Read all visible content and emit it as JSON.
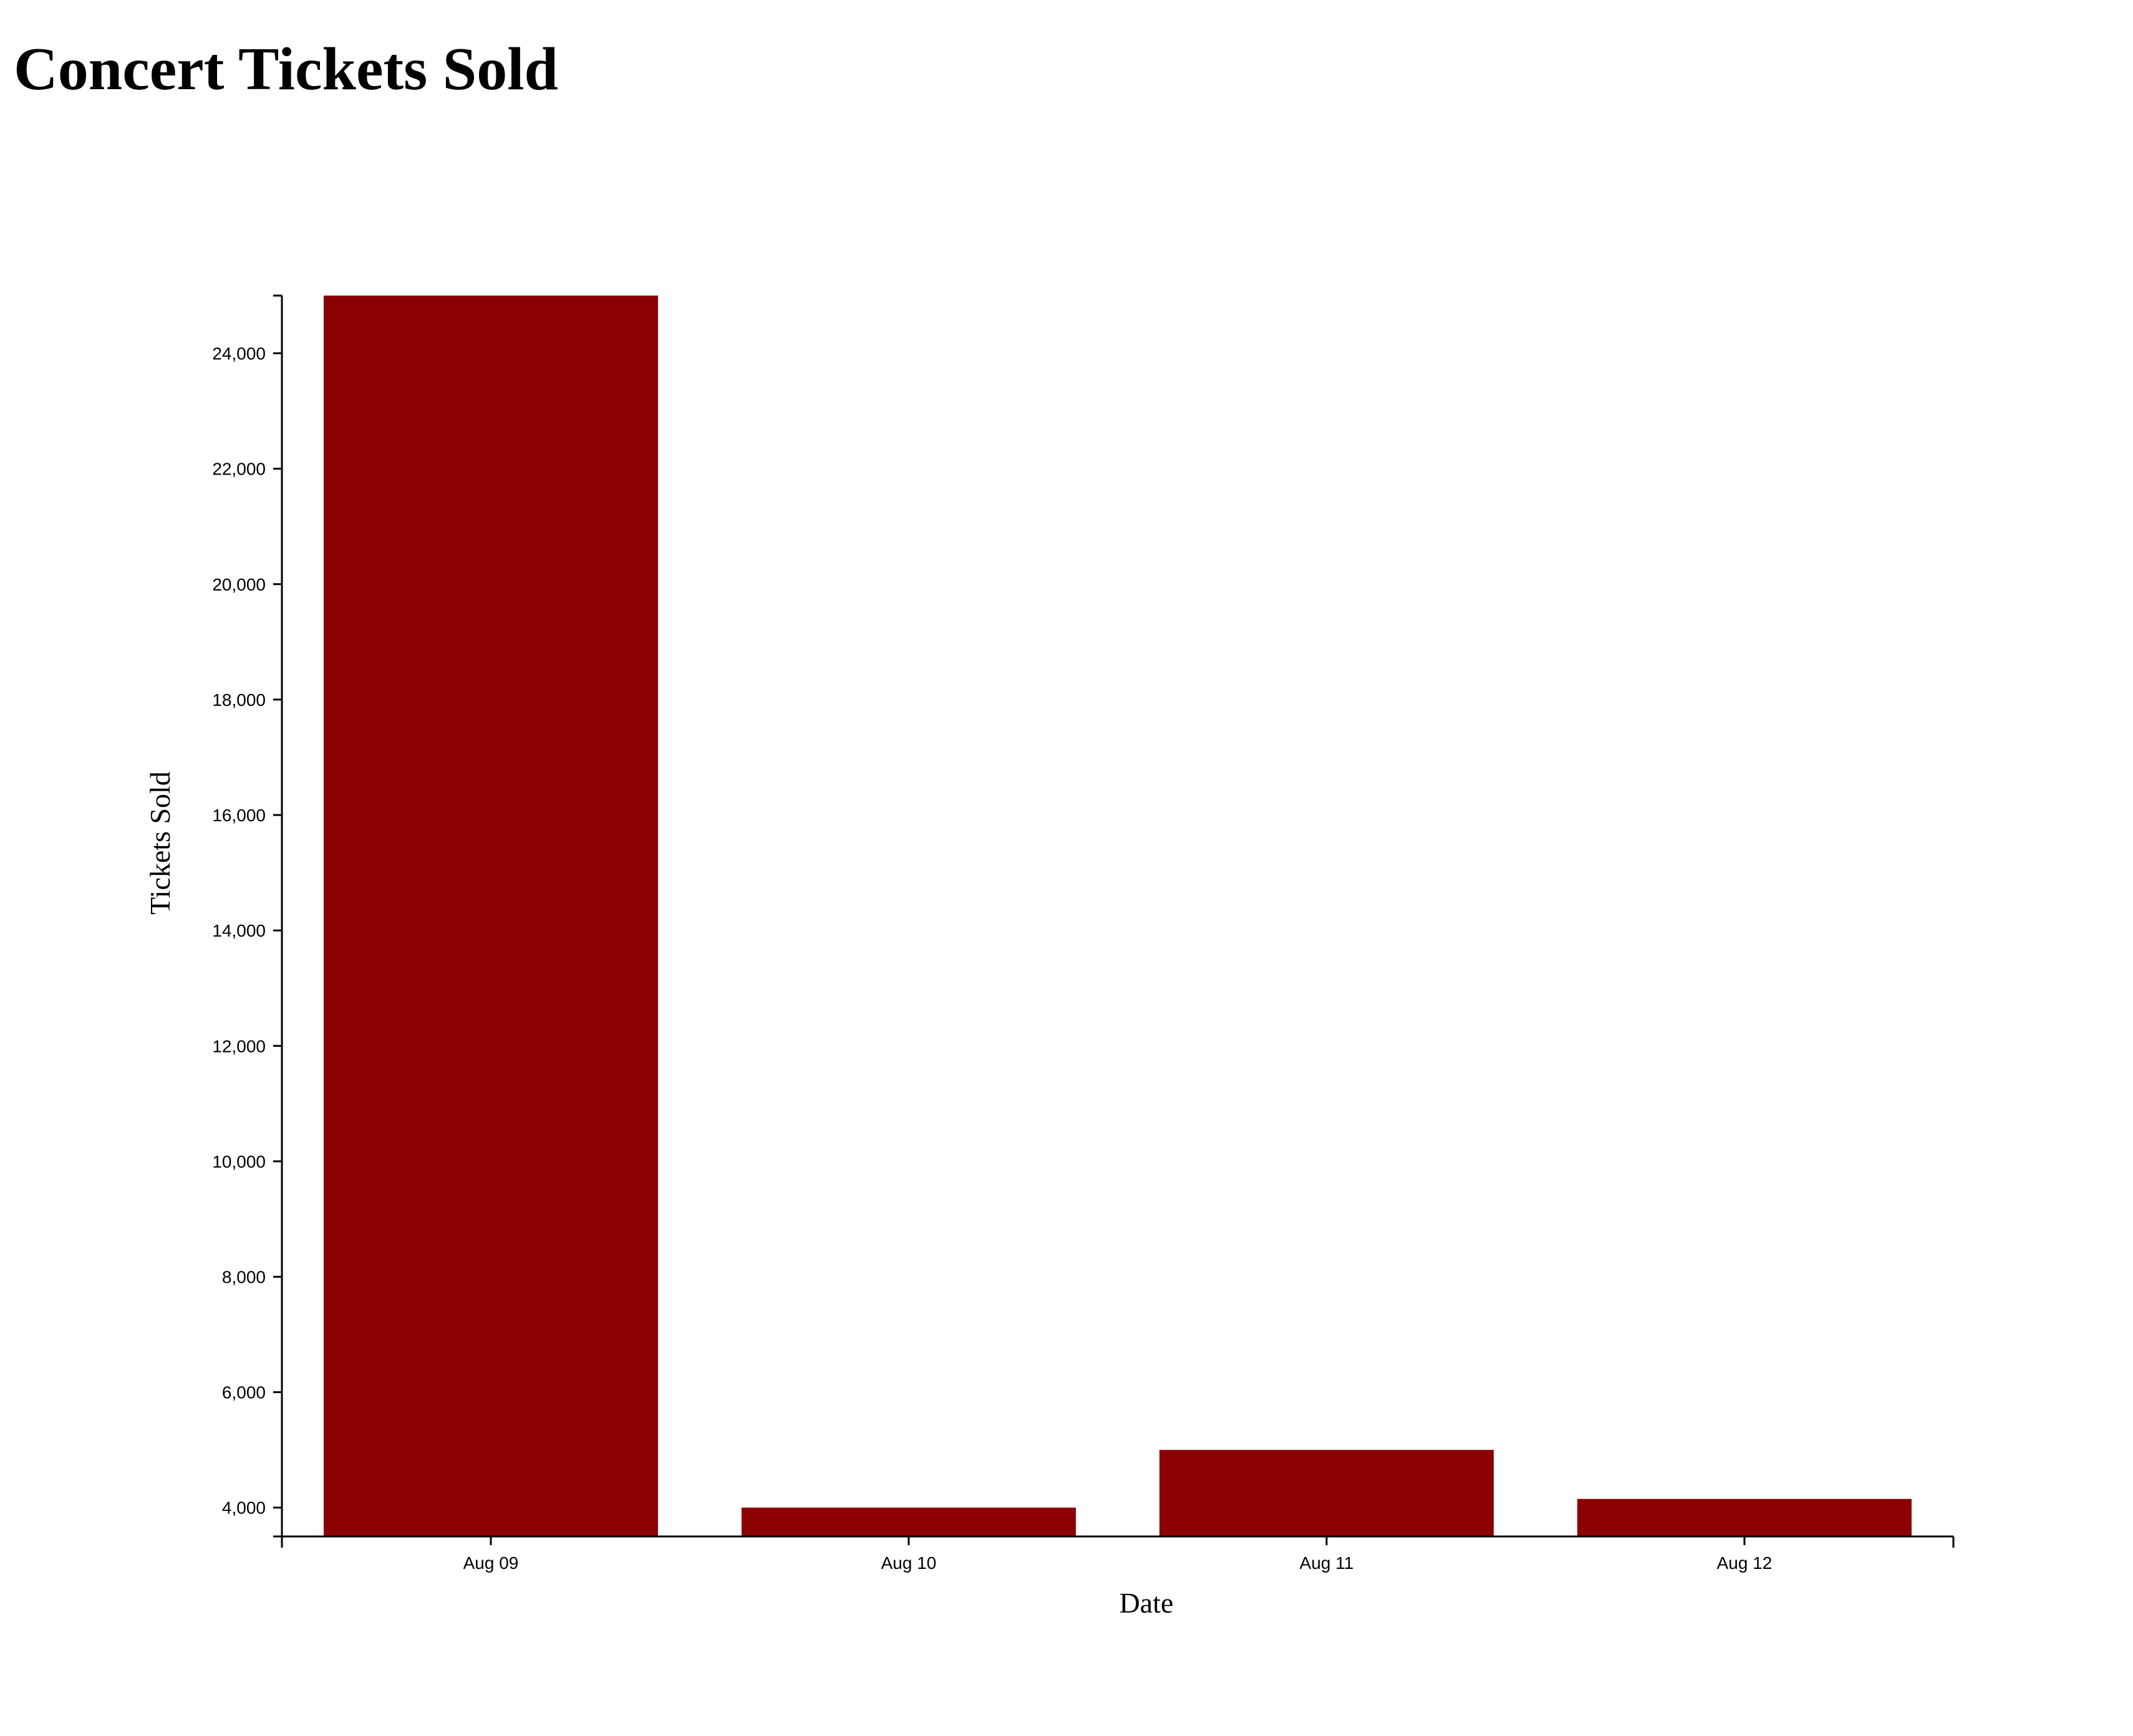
{
  "page": {
    "title": "Concert Tickets Sold"
  },
  "chart_data": {
    "type": "bar",
    "title": "Concert Tickets Sold",
    "xlabel": "Date",
    "ylabel": "Tickets Sold",
    "categories": [
      "Aug 09",
      "Aug 10",
      "Aug 11",
      "Aug 12"
    ],
    "values": [
      25000,
      4000,
      5000,
      4150
    ],
    "ylim": [
      3500,
      25000
    ],
    "yticks": [
      4000,
      6000,
      8000,
      10000,
      12000,
      14000,
      16000,
      18000,
      20000,
      22000,
      24000
    ],
    "ytick_labels": [
      "4,000",
      "6,000",
      "8,000",
      "10,000",
      "12,000",
      "14,000",
      "16,000",
      "18,000",
      "20,000",
      "22,000",
      "24,000"
    ],
    "bar_color": "#8b0000",
    "grid": false,
    "legend": "none"
  }
}
